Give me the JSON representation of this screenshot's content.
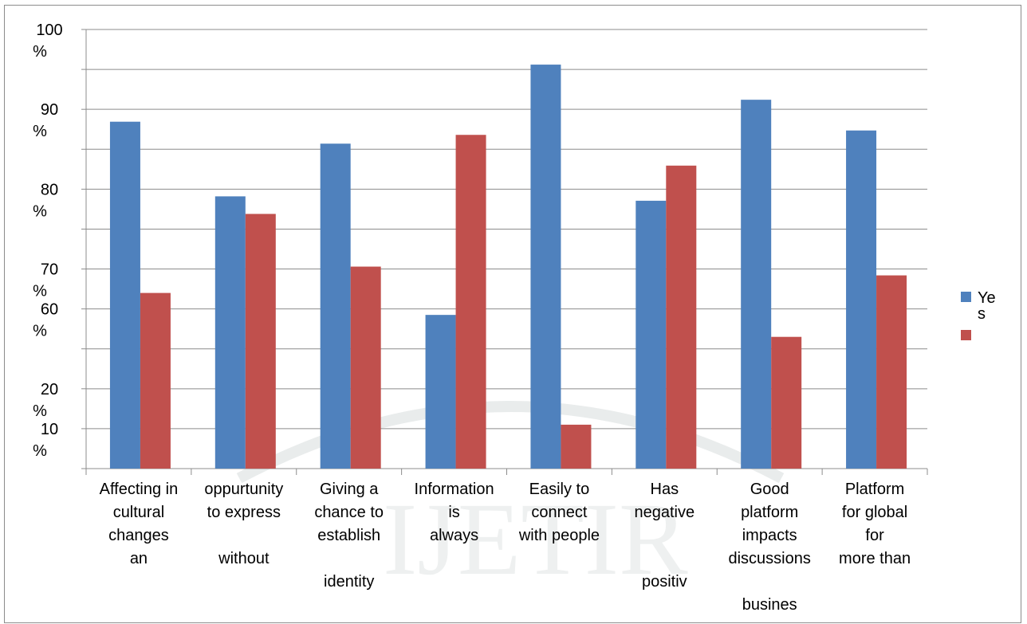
{
  "chart_data": {
    "type": "bar",
    "categories": [
      [
        "Affecting in",
        "cultural",
        "changes",
        "an"
      ],
      [
        "oppurtunity",
        "to express",
        "",
        "without"
      ],
      [
        "Giving a",
        "chance to",
        "establish",
        "",
        "identity"
      ],
      [
        "Information",
        "is",
        "always"
      ],
      [
        "Easily to",
        "connect",
        "with people"
      ],
      [
        "Has",
        "negative",
        "",
        "",
        "positiv"
      ],
      [
        "Good",
        "platform",
        "impacts",
        "discussions",
        "",
        "busines"
      ],
      [
        "Platform",
        "for global",
        "for",
        "more than"
      ]
    ],
    "yticks": [
      [
        "10",
        "%"
      ],
      [
        "20",
        "%"
      ],
      [
        "",
        ""
      ],
      [
        "60",
        "%"
      ],
      [
        "70",
        "%"
      ],
      [
        "",
        ""
      ],
      [
        "80",
        "%"
      ],
      [
        "",
        ""
      ],
      [
        "90",
        "%"
      ],
      [
        "",
        ""
      ],
      [
        "100",
        "%"
      ]
    ],
    "ylim": [
      0,
      100
    ],
    "grid": true,
    "legend_position": "right",
    "series": [
      {
        "name": "Ye\ns",
        "color": "#4f81bd",
        "values": [
          79,
          62,
          74,
          35,
          92,
          61,
          84,
          77
        ]
      },
      {
        "name": "",
        "color": "#c0504d",
        "values": [
          40,
          58,
          46,
          76,
          10,
          69,
          30,
          44
        ]
      }
    ]
  }
}
